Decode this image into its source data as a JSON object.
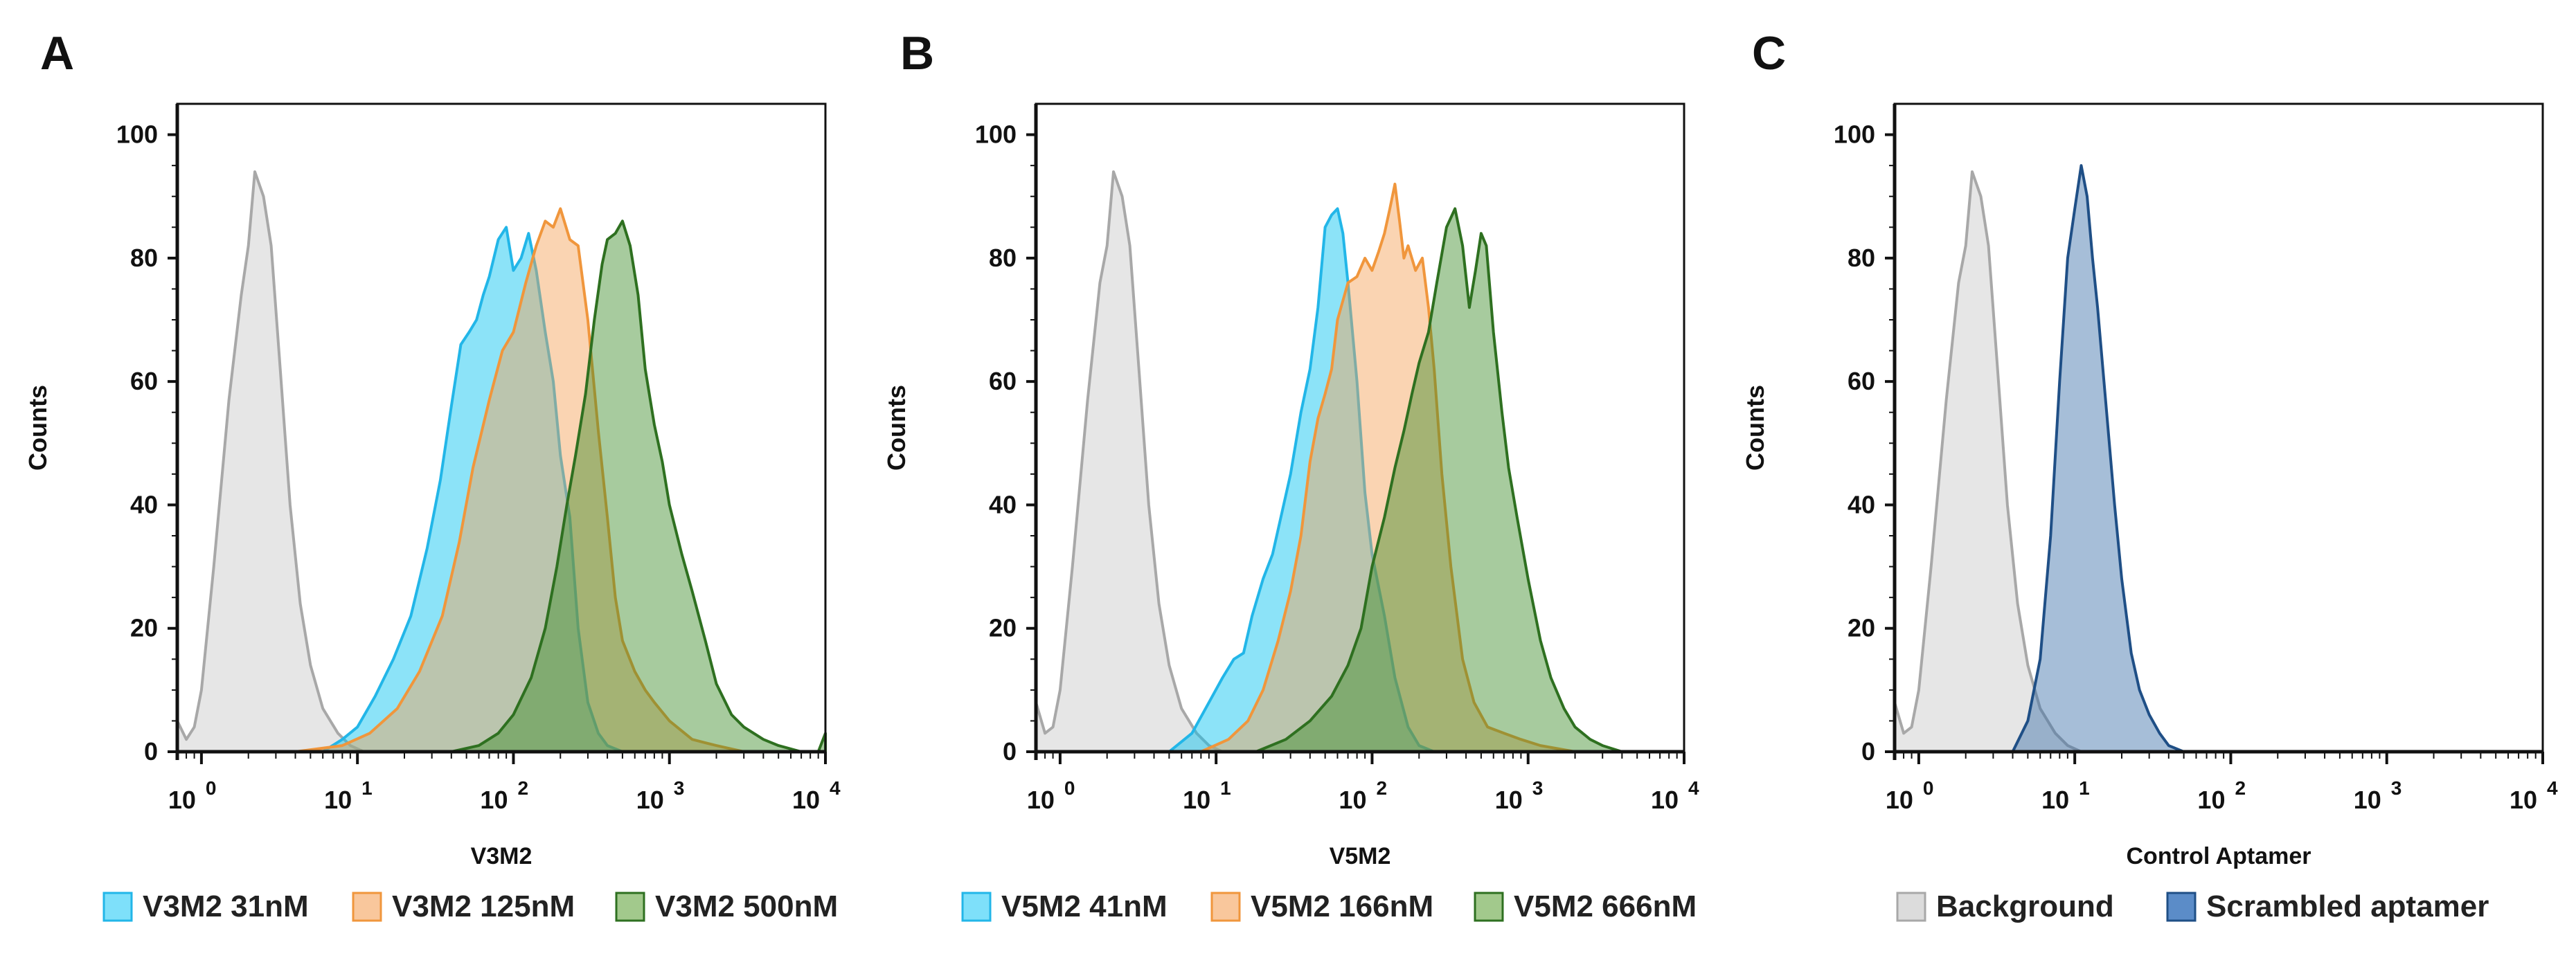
{
  "chart_data": [
    {
      "panel_label": "A",
      "type": "area",
      "title": "",
      "xlabel": "V3M2",
      "ylabel": "Counts",
      "xscale": "log",
      "xlim": [
        0.7,
        10000
      ],
      "ylim": [
        0,
        105
      ],
      "yticks": [
        "0",
        "20",
        "40",
        "60",
        "80",
        "100"
      ],
      "xticks": [
        {
          "base": "10",
          "exp": "0"
        },
        {
          "base": "10",
          "exp": "1"
        },
        {
          "base": "10",
          "exp": "2"
        },
        {
          "base": "10",
          "exp": "3"
        },
        {
          "base": "10",
          "exp": "4"
        }
      ],
      "series": [
        {
          "name": "Background",
          "in_legend": false,
          "fill": "#c8c8c8",
          "stroke": "#a8a8a8",
          "x": [
            0.7,
            0.8,
            0.9,
            1.0,
            1.2,
            1.5,
            1.8,
            2.0,
            2.2,
            2.5,
            2.8,
            3.2,
            3.7,
            4.3,
            5.0,
            6.0,
            7.5,
            9.0,
            11
          ],
          "y": [
            5,
            2,
            4,
            10,
            30,
            57,
            74,
            82,
            94,
            90,
            82,
            62,
            40,
            24,
            14,
            7,
            3,
            1,
            0
          ]
        },
        {
          "name": "V3M2 31nM",
          "in_legend": true,
          "fill": "#00c0f0",
          "stroke": "#22b6e8",
          "x": [
            6,
            8,
            10,
            13,
            17,
            22,
            28,
            34,
            40,
            46,
            52,
            58,
            64,
            70,
            80,
            90,
            100,
            112,
            125,
            140,
            160,
            180,
            200,
            230,
            260,
            300,
            350,
            400,
            500
          ],
          "y": [
            0,
            2,
            4,
            9,
            15,
            22,
            33,
            44,
            56,
            66,
            68,
            70,
            74,
            77,
            83,
            85,
            78,
            80,
            84,
            78,
            68,
            60,
            48,
            38,
            20,
            8,
            3,
            1,
            0
          ]
        },
        {
          "name": "V3M2 125nM",
          "in_legend": true,
          "fill": "#f5a055",
          "stroke": "#f0963c",
          "x": [
            4,
            8,
            12,
            18,
            25,
            35,
            45,
            55,
            70,
            85,
            100,
            120,
            140,
            160,
            180,
            200,
            230,
            260,
            300,
            350,
            400,
            450,
            500,
            600,
            700,
            800,
            1000,
            1400,
            2000,
            3000
          ],
          "y": [
            0,
            1,
            3,
            7,
            13,
            22,
            34,
            46,
            57,
            65,
            68,
            76,
            82,
            86,
            85,
            88,
            83,
            82,
            70,
            52,
            38,
            25,
            18,
            13,
            10,
            8,
            5,
            2,
            1,
            0
          ]
        },
        {
          "name": "V3M2 500nM",
          "in_legend": true,
          "fill": "#3c8c28",
          "stroke": "#2e7020",
          "x": [
            40,
            60,
            80,
            100,
            130,
            160,
            190,
            220,
            250,
            290,
            330,
            370,
            400,
            450,
            500,
            560,
            630,
            700,
            800,
            900,
            1000,
            1200,
            1400,
            1700,
            2000,
            2500,
            3000,
            4000,
            5000,
            7000,
            9000,
            10000
          ],
          "y": [
            0,
            1,
            3,
            6,
            12,
            20,
            30,
            40,
            48,
            58,
            70,
            79,
            83,
            84,
            86,
            82,
            74,
            62,
            53,
            47,
            40,
            32,
            26,
            18,
            11,
            6,
            4,
            2,
            1,
            0,
            0,
            3
          ]
        }
      ],
      "legend": [
        {
          "label": "V3M2 31nM",
          "color": "#7ee0fa",
          "border": "#22b6e8"
        },
        {
          "label": "V3M2 125nM",
          "color": "#f9c79c",
          "border": "#f0963c"
        },
        {
          "label": "V3M2 500nM",
          "color": "#a2c98c",
          "border": "#2e7020"
        }
      ]
    },
    {
      "panel_label": "B",
      "type": "area",
      "title": "",
      "xlabel": "V5M2",
      "ylabel": "Counts",
      "xscale": "log",
      "xlim": [
        0.7,
        10000
      ],
      "ylim": [
        0,
        105
      ],
      "yticks": [
        "0",
        "20",
        "40",
        "60",
        "80",
        "100"
      ],
      "xticks": [
        {
          "base": "10",
          "exp": "0"
        },
        {
          "base": "10",
          "exp": "1"
        },
        {
          "base": "10",
          "exp": "2"
        },
        {
          "base": "10",
          "exp": "3"
        },
        {
          "base": "10",
          "exp": "4"
        }
      ],
      "series": [
        {
          "name": "Background",
          "in_legend": false,
          "fill": "#c8c8c8",
          "stroke": "#a8a8a8",
          "x": [
            0.7,
            0.8,
            0.9,
            1.0,
            1.2,
            1.5,
            1.8,
            2.0,
            2.2,
            2.5,
            2.8,
            3.2,
            3.7,
            4.3,
            5.0,
            6.0,
            7.5,
            9.0,
            11
          ],
          "y": [
            8,
            3,
            4,
            10,
            30,
            57,
            76,
            82,
            94,
            90,
            82,
            62,
            40,
            24,
            14,
            7,
            3,
            1,
            0
          ]
        },
        {
          "name": "V5M2 41nM",
          "in_legend": true,
          "fill": "#00c0f0",
          "stroke": "#22b6e8",
          "x": [
            5,
            7,
            9,
            11,
            13,
            15,
            17,
            20,
            23,
            26,
            30,
            35,
            40,
            45,
            50,
            55,
            60,
            65,
            70,
            80,
            90,
            100,
            120,
            140,
            170,
            200,
            250
          ],
          "y": [
            0,
            3,
            8,
            12,
            15,
            16,
            22,
            28,
            32,
            38,
            45,
            55,
            62,
            72,
            85,
            87,
            88,
            84,
            76,
            60,
            42,
            32,
            22,
            12,
            4,
            1,
            0
          ]
        },
        {
          "name": "V5M2 166nM",
          "in_legend": true,
          "fill": "#f5a055",
          "stroke": "#f0963c",
          "x": [
            8,
            12,
            16,
            20,
            25,
            30,
            35,
            40,
            45,
            50,
            55,
            60,
            70,
            80,
            90,
            100,
            110,
            120,
            130,
            140,
            150,
            160,
            170,
            190,
            210,
            230,
            250,
            280,
            320,
            380,
            450,
            550,
            700,
            900,
            1200,
            2000
          ],
          "y": [
            0,
            2,
            5,
            10,
            18,
            26,
            35,
            47,
            54,
            58,
            62,
            70,
            76,
            77,
            80,
            78,
            81,
            84,
            88,
            92,
            86,
            80,
            82,
            78,
            80,
            72,
            62,
            45,
            30,
            15,
            8,
            4,
            3,
            2,
            1,
            0
          ]
        },
        {
          "name": "V5M2 666nM",
          "in_legend": true,
          "fill": "#3c8c28",
          "stroke": "#2e7020",
          "x": [
            18,
            28,
            40,
            55,
            70,
            85,
            100,
            120,
            140,
            160,
            180,
            200,
            230,
            260,
            300,
            340,
            380,
            420,
            460,
            500,
            540,
            600,
            680,
            750,
            850,
            1000,
            1200,
            1400,
            1700,
            2000,
            2500,
            3000,
            4000
          ],
          "y": [
            0,
            2,
            5,
            9,
            14,
            20,
            30,
            38,
            46,
            52,
            58,
            63,
            68,
            76,
            85,
            88,
            82,
            72,
            78,
            84,
            82,
            68,
            55,
            46,
            38,
            28,
            18,
            12,
            7,
            4,
            2,
            1,
            0
          ]
        }
      ],
      "legend": [
        {
          "label": "V5M2 41nM",
          "color": "#7ee0fa",
          "border": "#22b6e8"
        },
        {
          "label": "V5M2 166nM",
          "color": "#f9c79c",
          "border": "#f0963c"
        },
        {
          "label": "V5M2 666nM",
          "color": "#a2c98c",
          "border": "#2e7020"
        }
      ]
    },
    {
      "panel_label": "C",
      "type": "area",
      "title": "",
      "xlabel": "Control Aptamer",
      "ylabel": "Counts",
      "xscale": "log",
      "xlim": [
        0.7,
        10000
      ],
      "ylim": [
        0,
        105
      ],
      "yticks": [
        "0",
        "20",
        "40",
        "60",
        "80",
        "100"
      ],
      "xticks": [
        {
          "base": "10",
          "exp": "0"
        },
        {
          "base": "10",
          "exp": "1"
        },
        {
          "base": "10",
          "exp": "2"
        },
        {
          "base": "10",
          "exp": "3"
        },
        {
          "base": "10",
          "exp": "4"
        }
      ],
      "series": [
        {
          "name": "Background",
          "in_legend": true,
          "fill": "#c8c8c8",
          "stroke": "#a8a8a8",
          "x": [
            0.7,
            0.8,
            0.9,
            1.0,
            1.2,
            1.5,
            1.8,
            2.0,
            2.2,
            2.5,
            2.8,
            3.2,
            3.7,
            4.3,
            5.0,
            6.0,
            7.5,
            9.0,
            11
          ],
          "y": [
            8,
            3,
            4,
            10,
            30,
            57,
            76,
            82,
            94,
            90,
            82,
            62,
            40,
            24,
            14,
            7,
            3,
            1,
            0
          ]
        },
        {
          "name": "Scrambled aptamer",
          "in_legend": true,
          "fill": "#3a6fa8",
          "stroke": "#1f4f86",
          "x": [
            4,
            5,
            6,
            7,
            8,
            9,
            10,
            11,
            12,
            13,
            14,
            16,
            18,
            20,
            23,
            26,
            30,
            35,
            40,
            50
          ],
          "y": [
            0,
            5,
            15,
            35,
            60,
            80,
            88,
            95,
            90,
            80,
            72,
            55,
            40,
            28,
            16,
            10,
            6,
            3,
            1,
            0
          ]
        }
      ],
      "legend": [
        {
          "label": "Background",
          "color": "#dcdcdc",
          "border": "#a8a8a8"
        },
        {
          "label": "Scrambled aptamer",
          "color": "#5b8cc8",
          "border": "#1f4f86"
        }
      ]
    }
  ]
}
